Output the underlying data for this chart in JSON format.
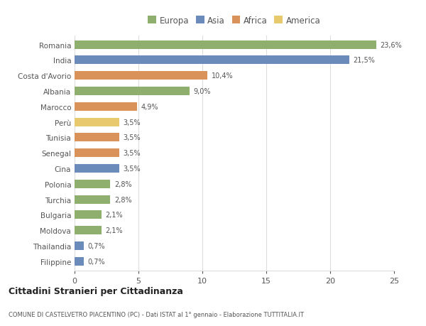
{
  "categories": [
    "Filippine",
    "Thailandia",
    "Moldova",
    "Bulgaria",
    "Turchia",
    "Polonia",
    "Cina",
    "Senegal",
    "Tunisia",
    "Perù",
    "Marocco",
    "Albania",
    "Costa d'Avorio",
    "India",
    "Romania"
  ],
  "values": [
    0.7,
    0.7,
    2.1,
    2.1,
    2.8,
    2.8,
    3.5,
    3.5,
    3.5,
    3.5,
    4.9,
    9.0,
    10.4,
    21.5,
    23.6
  ],
  "labels": [
    "0,7%",
    "0,7%",
    "2,1%",
    "2,1%",
    "2,8%",
    "2,8%",
    "3,5%",
    "3,5%",
    "3,5%",
    "3,5%",
    "4,9%",
    "9,0%",
    "10,4%",
    "21,5%",
    "23,6%"
  ],
  "colors": [
    "#6b8cba",
    "#6b8cba",
    "#8faf6e",
    "#8faf6e",
    "#8faf6e",
    "#8faf6e",
    "#6b8cba",
    "#d9935a",
    "#d9935a",
    "#e8c96e",
    "#d9935a",
    "#8faf6e",
    "#d9935a",
    "#6b8cba",
    "#8faf6e"
  ],
  "legend_labels": [
    "Europa",
    "Asia",
    "Africa",
    "America"
  ],
  "legend_colors": [
    "#8faf6e",
    "#6b8cba",
    "#d9935a",
    "#e8c96e"
  ],
  "title": "Cittadini Stranieri per Cittadinanza",
  "subtitle": "COMUNE DI CASTELVETRO PIACENTINO (PC) - Dati ISTAT al 1° gennaio - Elaborazione TUTTITALIA.IT",
  "xlim": [
    0,
    25
  ],
  "xticks": [
    0,
    5,
    10,
    15,
    20,
    25
  ],
  "background_color": "#ffffff",
  "grid_color": "#dddddd",
  "text_color": "#555555"
}
